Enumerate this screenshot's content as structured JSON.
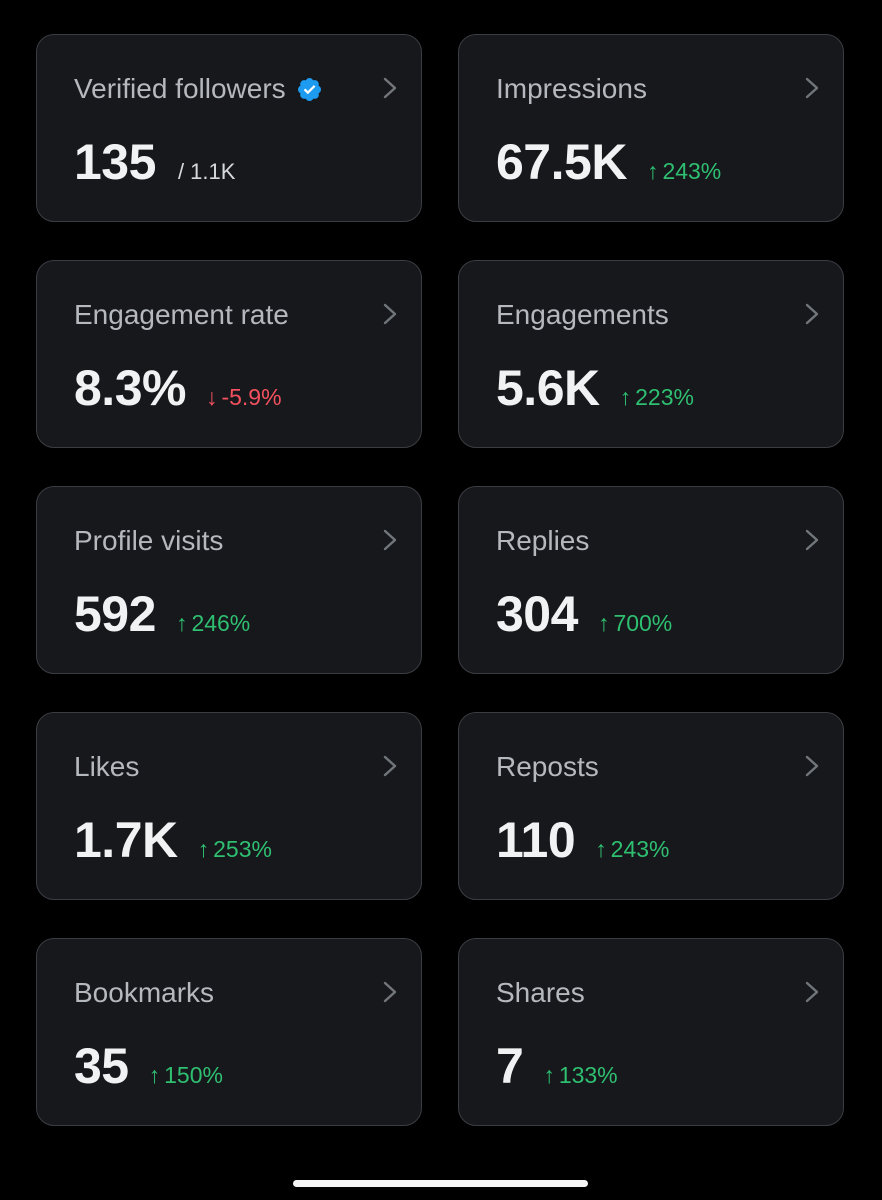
{
  "colors": {
    "background": "#000000",
    "card": "#16181c",
    "card_border": "#3a3d42",
    "label": "#b5b8bd",
    "value": "#f1f2f3",
    "positive": "#2fbf71",
    "negative": "#f4505e",
    "verified": "#1d9bf0"
  },
  "cards": [
    {
      "label": "Verified followers",
      "value": "135",
      "total": "/ 1.1K",
      "verified_badge": true,
      "icon": "chevron-right-icon"
    },
    {
      "label": "Impressions",
      "value": "67.5K",
      "change": "243%",
      "direction": "up",
      "arrow": "↑",
      "icon": "chevron-right-icon"
    },
    {
      "label": "Engagement rate",
      "value": "8.3%",
      "change": "-5.9%",
      "direction": "down",
      "arrow": "↓",
      "icon": "chevron-right-icon"
    },
    {
      "label": "Engagements",
      "value": "5.6K",
      "change": "223%",
      "direction": "up",
      "arrow": "↑",
      "icon": "chevron-right-icon"
    },
    {
      "label": "Profile visits",
      "value": "592",
      "change": "246%",
      "direction": "up",
      "arrow": "↑",
      "icon": "chevron-right-icon"
    },
    {
      "label": "Replies",
      "value": "304",
      "change": "700%",
      "direction": "up",
      "arrow": "↑",
      "icon": "chevron-right-icon"
    },
    {
      "label": "Likes",
      "value": "1.7K",
      "change": "253%",
      "direction": "up",
      "arrow": "↑",
      "icon": "chevron-right-icon"
    },
    {
      "label": "Reposts",
      "value": "110",
      "change": "243%",
      "direction": "up",
      "arrow": "↑",
      "icon": "chevron-right-icon"
    },
    {
      "label": "Bookmarks",
      "value": "35",
      "change": "150%",
      "direction": "up",
      "arrow": "↑",
      "icon": "chevron-right-icon"
    },
    {
      "label": "Shares",
      "value": "7",
      "change": "133%",
      "direction": "up",
      "arrow": "↑",
      "icon": "chevron-right-icon"
    }
  ]
}
